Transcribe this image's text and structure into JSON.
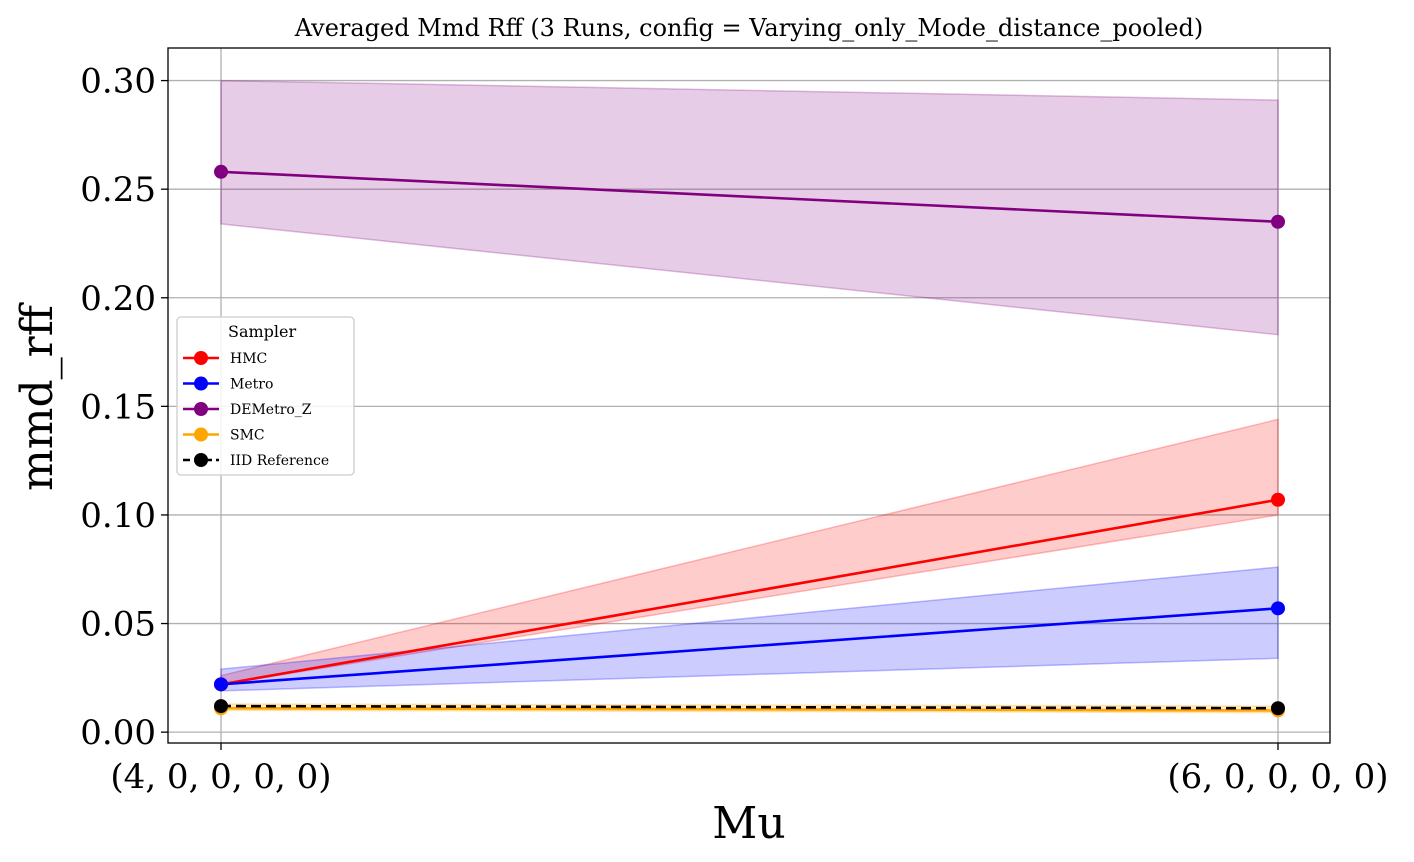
{
  "chart_data": {
    "type": "line",
    "title": "Averaged Mmd Rff (3 Runs, config = Varying_only_Mode_distance_pooled)",
    "xlabel": "Mu",
    "ylabel": "mmd_rff",
    "categories": [
      "(4, 0, 0, 0, 0)",
      "(6, 0, 0, 0, 0)"
    ],
    "ylim": [
      -0.005,
      0.315
    ],
    "yticks": [
      "0.00",
      "0.05",
      "0.10",
      "0.15",
      "0.20",
      "0.25",
      "0.30"
    ],
    "ytick_values": [
      0.0,
      0.05,
      0.1,
      0.15,
      0.2,
      0.25,
      0.3
    ],
    "grid": true,
    "legend_title": "Sampler",
    "legend_position": "center-left",
    "series": [
      {
        "name": "HMC",
        "color": "#ff0000",
        "values": [
          0.022,
          0.107
        ],
        "band_low": [
          0.022,
          0.1
        ],
        "band_high": [
          0.026,
          0.144
        ],
        "dashed": false
      },
      {
        "name": "Metro",
        "color": "#0000ff",
        "values": [
          0.022,
          0.057
        ],
        "band_low": [
          0.019,
          0.034
        ],
        "band_high": [
          0.029,
          0.076
        ],
        "dashed": false
      },
      {
        "name": "DEMetro_Z",
        "color": "#800080",
        "values": [
          0.258,
          0.235
        ],
        "band_low": [
          0.234,
          0.183
        ],
        "band_high": [
          0.3,
          0.291
        ],
        "dashed": false
      },
      {
        "name": "SMC",
        "color": "#ffa500",
        "values": [
          0.011,
          0.01
        ],
        "band_low": [
          0.01,
          0.009
        ],
        "band_high": [
          0.013,
          0.012
        ],
        "dashed": false
      },
      {
        "name": "IID Reference",
        "color": "#000000",
        "values": [
          0.012,
          0.011
        ],
        "band_low": null,
        "band_high": null,
        "dashed": true
      }
    ]
  }
}
